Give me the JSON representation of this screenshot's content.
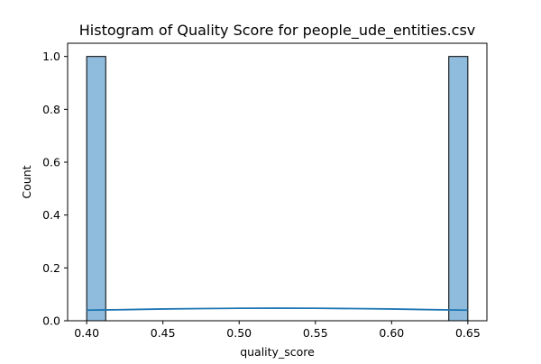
{
  "chart_data": {
    "type": "histogram",
    "title": "Histogram of Quality Score for people_ude_entities.csv",
    "xlabel": "quality_score",
    "ylabel": "Count",
    "xlim": [
      0.3875,
      0.6625
    ],
    "ylim": [
      0,
      1.05
    ],
    "xticks": [
      0.4,
      0.45,
      0.5,
      0.55,
      0.6,
      0.65
    ],
    "xtick_labels": [
      "0.40",
      "0.45",
      "0.50",
      "0.55",
      "0.60",
      "0.65"
    ],
    "yticks": [
      0.0,
      0.2,
      0.4,
      0.6,
      0.8,
      1.0
    ],
    "ytick_labels": [
      "0.0",
      "0.2",
      "0.4",
      "0.6",
      "0.8",
      "1.0"
    ],
    "bins": [
      {
        "x_start": 0.4,
        "x_end": 0.4125,
        "count": 1
      },
      {
        "x_start": 0.6375,
        "x_end": 0.65,
        "count": 1
      }
    ],
    "kde": {
      "x": [
        0.4,
        0.425,
        0.45,
        0.475,
        0.5,
        0.525,
        0.55,
        0.575,
        0.6,
        0.625,
        0.65
      ],
      "y": [
        0.04,
        0.042,
        0.0445,
        0.046,
        0.0472,
        0.0475,
        0.0472,
        0.046,
        0.0445,
        0.042,
        0.04
      ]
    },
    "grid": false,
    "legend": false,
    "colors": {
      "bar_fill": "#8fbcdc",
      "bar_edge": "#000000",
      "kde_line": "#1f77b4",
      "axes": "#000000",
      "background": "#ffffff"
    }
  }
}
